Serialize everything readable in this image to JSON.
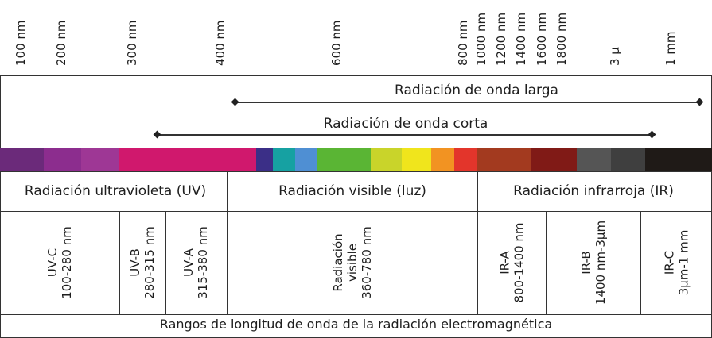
{
  "scale_labels": [
    "100 nm",
    "200 nm",
    "300 nm",
    "400 nm",
    "600 nm",
    "800 nm",
    "1000 nm",
    "1200 nm",
    "1400 nm",
    "1600 nm",
    "1800 nm",
    "3 µ",
    "1 mm"
  ],
  "arrows": {
    "long_wave": "Radiación de onda larga",
    "short_wave": "Radiación de onda corta"
  },
  "spectrum_colors": [
    "#6b2a7a",
    "#8c2d8e",
    "#9e3795",
    "#d0186d",
    "#3b2f87",
    "#16a1a2",
    "#4f8fd3",
    "#5ab534",
    "#c9d42a",
    "#f0e51c",
    "#f29322",
    "#e3352b",
    "#a33a1f",
    "#801a16",
    "#555555",
    "#3f3f3f",
    "#1f1a17"
  ],
  "regions": {
    "uv": "Radiación ultravioleta (UV)",
    "visible": "Radiación visible (luz)",
    "ir": "Radiación infrarroja (IR)"
  },
  "subregions": {
    "uvc": [
      "UV-C",
      "100-280 nm"
    ],
    "uvb": [
      "UV-B",
      "280-315 nm"
    ],
    "uva": [
      "UV-A",
      "315-380 nm"
    ],
    "vis": [
      "Radiación",
      "visible",
      "360-780 nm"
    ],
    "ira": [
      "IR-A",
      "800-1400 nm"
    ],
    "irb": [
      "IR-B",
      "1400 nm-3µm"
    ],
    "irc": [
      "IR-C",
      "3µm-1 mm"
    ]
  },
  "caption": "Rangos de longitud de onda de la radiación electromagnética"
}
